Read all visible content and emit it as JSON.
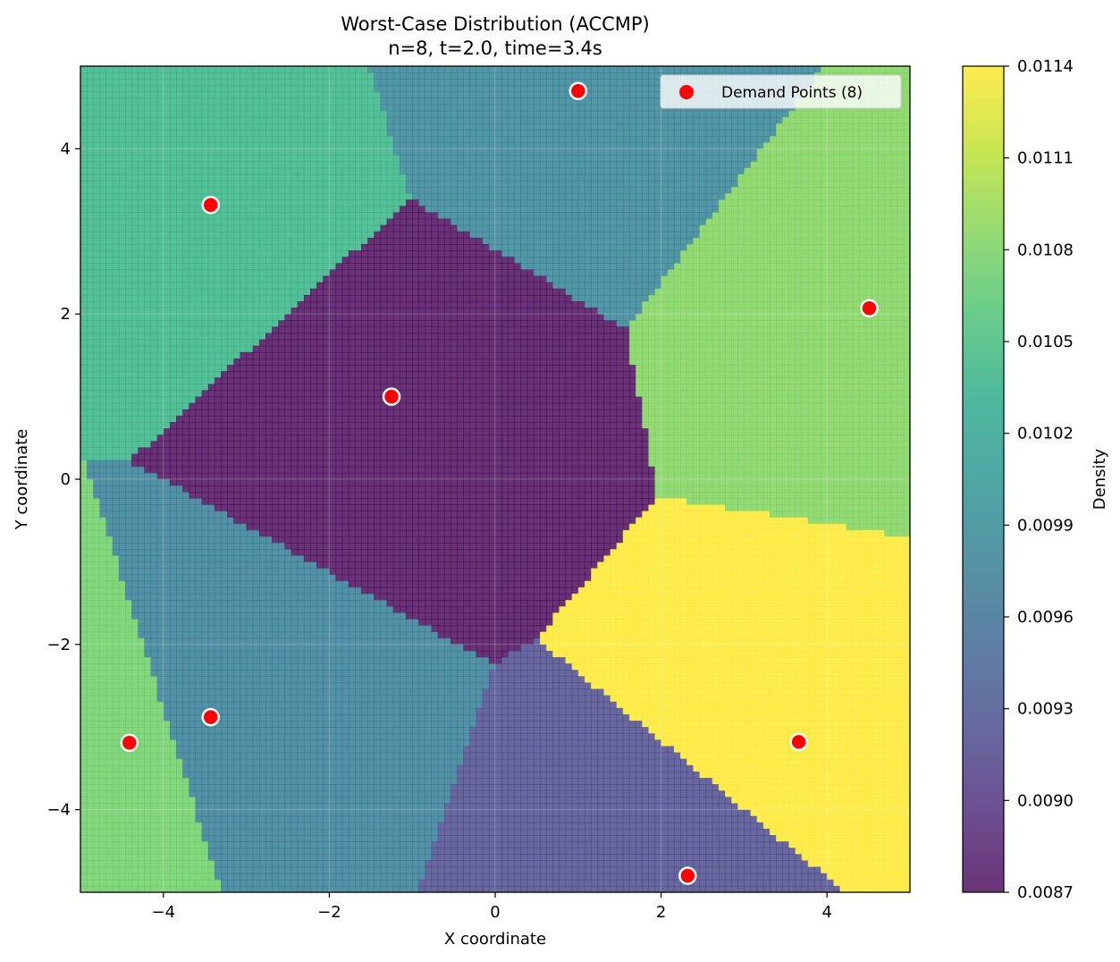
{
  "chart_data": {
    "type": "heatmap",
    "title": "Worst-Case Distribution (ACCMP)",
    "subtitle": "n=8, t=2.0, time=3.4s",
    "xlabel": "X coordinate",
    "ylabel": "Y coordinate",
    "xlim": [
      -5,
      5
    ],
    "ylim": [
      -5,
      5
    ],
    "x_ticks": [
      -4,
      -2,
      0,
      2,
      4
    ],
    "y_ticks": [
      -4,
      -2,
      0,
      2,
      4
    ],
    "x_tick_labels": [
      "−4",
      "−2",
      "0",
      "2",
      "4"
    ],
    "y_tick_labels": [
      "−4",
      "−2",
      "0",
      "2",
      "4"
    ],
    "grid": true,
    "colormap": "viridis",
    "colorbar": {
      "label": "Density",
      "range": [
        0.0087,
        0.0114
      ],
      "ticks": [
        0.0087,
        0.009,
        0.0093,
        0.0096,
        0.0099,
        0.0102,
        0.0105,
        0.0108,
        0.0111,
        0.0114
      ],
      "tick_labels": [
        "0.0087",
        "0.0090",
        "0.0093",
        "0.0096",
        "0.0099",
        "0.0102",
        "0.0105",
        "0.0108",
        "0.0111",
        "0.0114"
      ]
    },
    "series": [
      {
        "name": "Demand Points (8)",
        "type": "scatter",
        "color": "#ff0000",
        "x": [
          1.0,
          -3.43,
          4.51,
          -1.25,
          -4.41,
          -3.43,
          3.66,
          2.32
        ],
        "y": [
          4.7,
          3.32,
          2.07,
          1.0,
          -3.19,
          -2.88,
          -3.18,
          -4.8
        ]
      }
    ],
    "regions": [
      {
        "point": 0,
        "density": 0.00982
      },
      {
        "point": 1,
        "density": 0.0104
      },
      {
        "point": 2,
        "density": 0.01085
      },
      {
        "point": 3,
        "density": 0.0087
      },
      {
        "point": 4,
        "density": 0.01075
      },
      {
        "point": 5,
        "density": 0.00975
      },
      {
        "point": 6,
        "density": 0.0114
      },
      {
        "point": 7,
        "density": 0.00922
      }
    ],
    "legend": {
      "position": "top-right",
      "entries": [
        "Demand Points (8)"
      ]
    }
  }
}
